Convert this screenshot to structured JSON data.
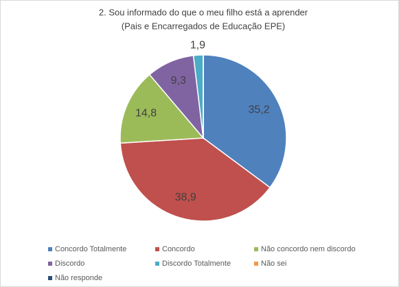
{
  "chart_data": {
    "type": "pie",
    "title": "2. Sou informado do que o meu filho está a aprender",
    "subtitle": "(Pais e Encarregados de Educação EPE)",
    "categories": [
      "Concordo Totalmente",
      "Concordo",
      "Não concordo nem discordo",
      "Discordo",
      "Discordo Totalmente",
      "Não sei",
      "Não responde"
    ],
    "values": [
      35.2,
      38.9,
      14.8,
      9.3,
      1.9,
      0,
      0
    ],
    "value_labels": [
      "35,2",
      "38,9",
      "14,8",
      "9,3",
      "1,9",
      null,
      null
    ],
    "colors": [
      "#4f81bd",
      "#c0504d",
      "#9bbb59",
      "#8064a2",
      "#4bacc6",
      "#f79646",
      "#2c4d75"
    ],
    "legend": "bottom"
  }
}
